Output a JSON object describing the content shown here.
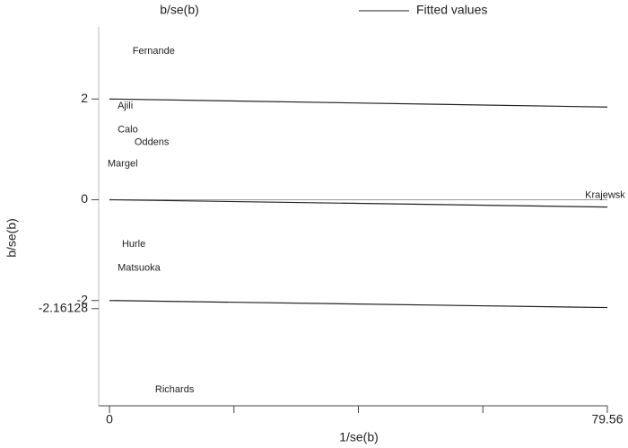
{
  "chart_data": {
    "type": "galbraith",
    "xlabel": "1/se(b)",
    "ylabel": "b/se(b)",
    "xlim": [
      -1.72,
      79.56
    ],
    "ylim": [
      -4.09,
      3.43
    ],
    "xticks": [
      0,
      79.56
    ],
    "xminorticks": [
      19.89,
      39.78,
      59.67
    ],
    "yticks": [
      2,
      0,
      -2,
      -2.16128
    ],
    "yline": 0,
    "series": [
      {
        "name": "b/se(b)",
        "type": "scatter",
        "color": "#222222",
        "labels": [
          "Fernande",
          "Ajili",
          "Calo",
          "Oddens",
          "Margel",
          "Krajewsk",
          "Hurle",
          "Matsuoka",
          "Richards"
        ],
        "x": [
          3.7,
          1.3,
          1.3,
          4.0,
          -0.3,
          76,
          2.0,
          1.3,
          7.3
        ],
        "values": [
          2.95,
          1.86,
          1.39,
          1.14,
          0.71,
          0.09,
          -0.88,
          -1.36,
          -3.77
        ]
      },
      {
        "name": "Fitted values",
        "type": "line",
        "color": "#222222",
        "x": [
          0,
          79.56
        ],
        "values": [
          0,
          -0.145
        ]
      }
    ],
    "bands": [
      {
        "x": [
          0,
          79.56
        ],
        "values": [
          2,
          1.84
        ]
      },
      {
        "x": [
          0,
          79.56
        ],
        "values": [
          -2,
          -2.14
        ]
      }
    ]
  }
}
